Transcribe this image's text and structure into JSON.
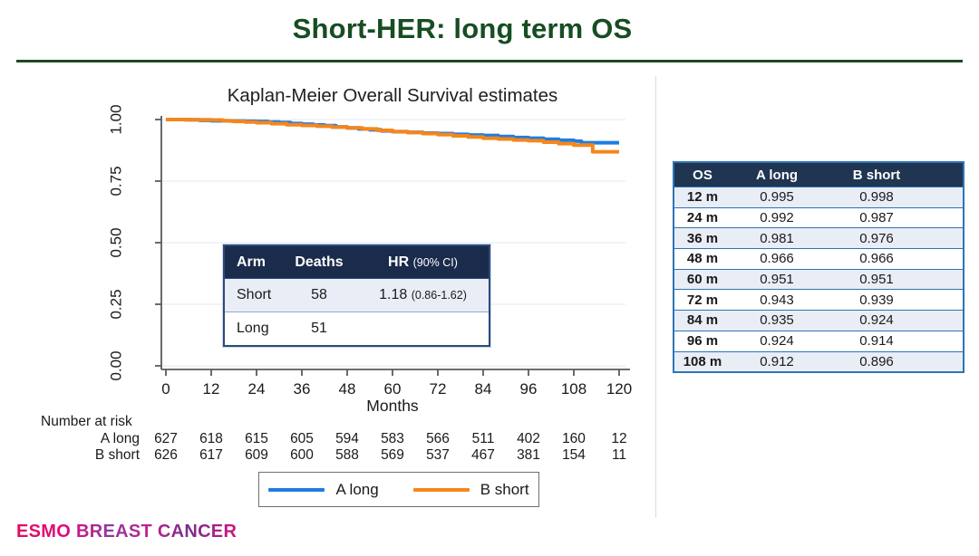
{
  "slide": {
    "title": "Short-HER: long term OS"
  },
  "chart_data": {
    "type": "line",
    "subtype": "kaplan-meier-step",
    "title": "Kaplan-Meier Overall Survival estimates",
    "xlabel": "Months",
    "ylabel": "",
    "xlim": [
      0,
      120
    ],
    "ylim": [
      0,
      1
    ],
    "grid": true,
    "x_ticks": [
      0,
      12,
      24,
      36,
      48,
      60,
      72,
      84,
      96,
      108,
      120
    ],
    "y_tick_labels": [
      "1.00",
      "0.75",
      "0.50",
      "0.25",
      "0.00"
    ],
    "y_tick_values": [
      1.0,
      0.75,
      0.5,
      0.25,
      0.0
    ],
    "legend_position": "bottom",
    "series": [
      {
        "name": "A long",
        "color": "#1f7de0",
        "points": [
          [
            0,
            1.0
          ],
          [
            5,
            0.999
          ],
          [
            9,
            0.997
          ],
          [
            12,
            0.995
          ],
          [
            17,
            0.994
          ],
          [
            21,
            0.993
          ],
          [
            24,
            0.992
          ],
          [
            27,
            0.99
          ],
          [
            30,
            0.988
          ],
          [
            33,
            0.984
          ],
          [
            36,
            0.981
          ],
          [
            39,
            0.978
          ],
          [
            42,
            0.975
          ],
          [
            45,
            0.97
          ],
          [
            48,
            0.966
          ],
          [
            51,
            0.962
          ],
          [
            54,
            0.958
          ],
          [
            57,
            0.954
          ],
          [
            60,
            0.951
          ],
          [
            64,
            0.948
          ],
          [
            68,
            0.945
          ],
          [
            72,
            0.943
          ],
          [
            76,
            0.94
          ],
          [
            80,
            0.937
          ],
          [
            84,
            0.935
          ],
          [
            88,
            0.931
          ],
          [
            92,
            0.927
          ],
          [
            96,
            0.924
          ],
          [
            100,
            0.92
          ],
          [
            104,
            0.916
          ],
          [
            108,
            0.912
          ],
          [
            110,
            0.906
          ],
          [
            120,
            0.906
          ]
        ]
      },
      {
        "name": "B short",
        "color": "#f5861c",
        "points": [
          [
            0,
            1.0
          ],
          [
            6,
            0.999
          ],
          [
            12,
            0.998
          ],
          [
            15,
            0.995
          ],
          [
            18,
            0.992
          ],
          [
            21,
            0.99
          ],
          [
            24,
            0.987
          ],
          [
            28,
            0.983
          ],
          [
            32,
            0.979
          ],
          [
            36,
            0.976
          ],
          [
            40,
            0.973
          ],
          [
            44,
            0.969
          ],
          [
            48,
            0.966
          ],
          [
            52,
            0.962
          ],
          [
            56,
            0.956
          ],
          [
            60,
            0.951
          ],
          [
            64,
            0.947
          ],
          [
            68,
            0.943
          ],
          [
            72,
            0.939
          ],
          [
            76,
            0.934
          ],
          [
            80,
            0.929
          ],
          [
            84,
            0.924
          ],
          [
            88,
            0.921
          ],
          [
            92,
            0.917
          ],
          [
            96,
            0.914
          ],
          [
            100,
            0.908
          ],
          [
            104,
            0.902
          ],
          [
            108,
            0.896
          ],
          [
            113,
            0.869
          ],
          [
            120,
            0.869
          ]
        ]
      }
    ]
  },
  "inset_table": {
    "headers": {
      "arm": "Arm",
      "deaths": "Deaths",
      "hr": "HR",
      "hr_ci": "(90% CI)"
    },
    "rows": [
      {
        "arm": "Short",
        "deaths": "58",
        "hr": "1.18",
        "ci": "(0.86-1.62)"
      },
      {
        "arm": "Long",
        "deaths": "51",
        "hr": "",
        "ci": ""
      }
    ]
  },
  "risk_table": {
    "title": "Number at risk",
    "rows": [
      {
        "label": "A long",
        "values": [
          "627",
          "618",
          "615",
          "605",
          "594",
          "583",
          "566",
          "511",
          "402",
          "160",
          "12"
        ]
      },
      {
        "label": "B short",
        "values": [
          "626",
          "617",
          "609",
          "600",
          "588",
          "569",
          "537",
          "467",
          "381",
          "154",
          "11"
        ]
      }
    ]
  },
  "legend": {
    "items": [
      {
        "label": "A long",
        "color": "#1f7de0"
      },
      {
        "label": "B short",
        "color": "#f5861c"
      }
    ]
  },
  "os_table": {
    "headers": [
      "OS",
      "A long",
      "B short"
    ],
    "rows": [
      [
        "12 m",
        "0.995",
        "0.998"
      ],
      [
        "24 m",
        "0.992",
        "0.987"
      ],
      [
        "36 m",
        "0.981",
        "0.976"
      ],
      [
        "48 m",
        "0.966",
        "0.966"
      ],
      [
        "60 m",
        "0.951",
        "0.951"
      ],
      [
        "72 m",
        "0.943",
        "0.939"
      ],
      [
        "84 m",
        "0.935",
        "0.924"
      ],
      [
        "96 m",
        "0.924",
        "0.914"
      ],
      [
        "108 m",
        "0.912",
        "0.896"
      ]
    ]
  },
  "footer": {
    "logo": "ESMO BREAST CANCER"
  },
  "colors": {
    "title_green": "#174d22",
    "table_header_navy": "#1f3552",
    "row_alt_blue": "#e9edf5",
    "table_border_blue": "#2e74b5",
    "axis_gray": "#5a5a5a",
    "grid_gray": "#e8eef3"
  }
}
